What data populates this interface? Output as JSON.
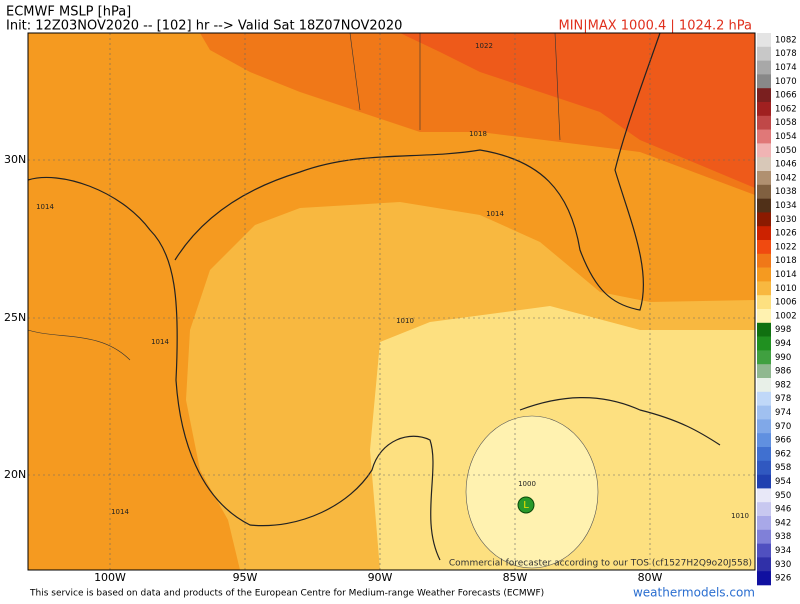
{
  "header": {
    "title": "ECMWF MSLP [hPa]",
    "init": "Init: 12Z03NOV2020 -- [102] hr --> Valid Sat 18Z07NOV2020",
    "minmax": "MIN|MAX 1000.4 | 1024.2 hPa"
  },
  "map": {
    "lat_labels": [
      "30N",
      "25N",
      "20N"
    ],
    "lon_labels": [
      "100W",
      "95W",
      "90W",
      "85W",
      "80W"
    ],
    "contour_labels": [
      1022,
      1018,
      1014,
      1014,
      1014,
      1010,
      1014,
      1000,
      1010
    ],
    "low_label": "L",
    "notice": "Commercial forecaster according to our TOS (cf1527H2Q9o20J558)"
  },
  "colorbar": {
    "levels": [
      1082,
      1078,
      1074,
      1070,
      1066,
      1062,
      1058,
      1054,
      1050,
      1046,
      1042,
      1038,
      1034,
      1030,
      1026,
      1022,
      1018,
      1014,
      1010,
      1006,
      1002,
      998,
      994,
      990,
      986,
      982,
      978,
      974,
      970,
      966,
      962,
      958,
      954,
      950,
      946,
      942,
      938,
      934,
      930,
      926
    ],
    "colors": [
      "#e4e4e4",
      "#c8c8c8",
      "#a8a8a8",
      "#888888",
      "#7a1f1f",
      "#a02020",
      "#c04848",
      "#e07878",
      "#f0b4b4",
      "#d8c8b8",
      "#b09070",
      "#806040",
      "#503018",
      "#8b1a00",
      "#cc2200",
      "#f04a10",
      "#f07818",
      "#f59a20",
      "#f8b840",
      "#fde080",
      "#fff2b0",
      "#107010",
      "#209020",
      "#40a040",
      "#90b890",
      "#e8f0e8",
      "#c0d8f8",
      "#a0c0f0",
      "#80a8e8",
      "#6090e0",
      "#4070d0",
      "#3058c0",
      "#2040b0",
      "#e8e8f8",
      "#c8c8f0",
      "#a8a8e8",
      "#8080d8",
      "#5050c0",
      "#3030a8",
      "#1010a0"
    ]
  },
  "footer": {
    "text": "This service is based on data and products of the European Centre for Medium-range Weather Forecasts (ECMWF)",
    "site": "weathermodels.com"
  }
}
